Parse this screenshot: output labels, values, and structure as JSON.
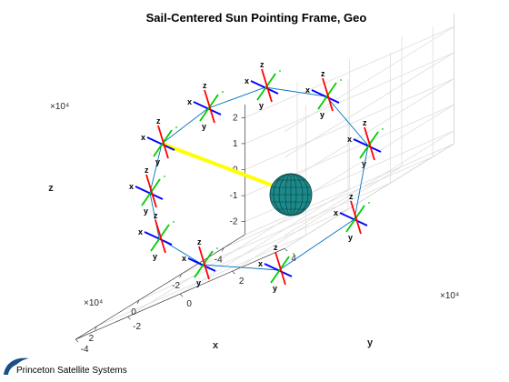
{
  "chart_data": {
    "type": "scatter",
    "title": "Sail-Centered Sun Pointing Frame, Geo",
    "xlabel": "x",
    "ylabel": "y",
    "zlabel": "z",
    "x_ticks": [
      "-4",
      "-2",
      "0",
      "2"
    ],
    "y_ticks": [
      "-4",
      "-2",
      "0",
      "2",
      "4"
    ],
    "z_ticks": [
      "-2",
      "-1",
      "0",
      "1",
      "2"
    ],
    "x_multiplier": "×10⁴",
    "y_multiplier": "×10⁴",
    "z_multiplier": "×10⁴",
    "xlim": [
      -5,
      3
    ],
    "ylim": [
      -4,
      4
    ],
    "zlim": [
      -2.5,
      2.5
    ],
    "grid": true,
    "frame_axis_labels": {
      "z": "z",
      "y": "y",
      "x": "x"
    },
    "orbit": {
      "name": "",
      "color": "#0072bd",
      "points": [
        [
          -4.2,
          0.0,
          0.0
        ],
        [
          -3.64,
          2.1,
          1.0
        ],
        [
          -2.1,
          3.64,
          1.73
        ],
        [
          0.0,
          4.2,
          2.0
        ],
        [
          2.1,
          3.64,
          1.73
        ],
        [
          3.64,
          2.1,
          1.0
        ],
        [
          4.2,
          0.0,
          0.0
        ],
        [
          3.64,
          -2.1,
          -1.0
        ],
        [
          2.1,
          -3.64,
          -1.73
        ],
        [
          0.0,
          -4.2,
          -2.0
        ],
        [
          -2.1,
          -3.64,
          -1.73
        ],
        [
          -3.64,
          -2.1,
          -1.0
        ]
      ]
    },
    "sun_line": {
      "color": "#ffff00"
    },
    "earth": {
      "color": "#1c8a8a"
    },
    "frame_colors": {
      "x": "#0000ff",
      "y": "#00cc00",
      "z": "#ff0000"
    }
  },
  "logo": {
    "text": "Princeton Satellite Systems",
    "color": "#1a4f8a"
  }
}
